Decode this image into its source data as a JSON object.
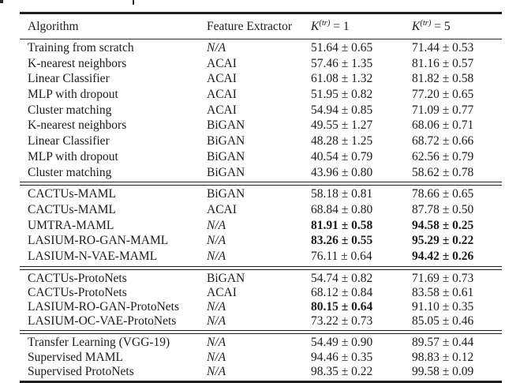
{
  "artifacts": {
    "note": "tiny cropped glyph fragments from caption line cut off at top edge"
  },
  "table": {
    "header": {
      "algorithm": "Algorithm",
      "feature_extractor": "Feature Extractor",
      "k1": {
        "base": "K",
        "sup": "(tr)",
        "rest": " = 1"
      },
      "k5": {
        "base": "K",
        "sup": "(tr)",
        "rest": " = 5"
      }
    },
    "rule_color": "#1e1e1e",
    "text_color": "#1b1b1b",
    "sections": [
      {
        "rows": [
          {
            "algorithm": "Training from scratch",
            "extractor": "N/A",
            "extractor_italic": true,
            "k1": "51.64 ± 0.65",
            "k5": "71.44 ± 0.53"
          },
          {
            "algorithm": "K-nearest neighbors",
            "extractor": "ACAI",
            "k1": "57.46 ± 1.35",
            "k5": "81.16 ± 0.57"
          },
          {
            "algorithm": "Linear Classifier",
            "extractor": "ACAI",
            "k1": "61.08 ± 1.32",
            "k5": "81.82 ± 0.58"
          },
          {
            "algorithm": "MLP with dropout",
            "extractor": "ACAI",
            "k1": "51.95 ± 0.82",
            "k5": "77.20 ± 0.65"
          },
          {
            "algorithm": "Cluster matching",
            "extractor": "ACAI",
            "k1": "54.94 ± 0.85",
            "k5": "71.09 ± 0.77"
          },
          {
            "algorithm": "K-nearest neighbors",
            "extractor": "BiGAN",
            "k1": "49.55 ± 1.27",
            "k5": "68.06 ± 0.71"
          },
          {
            "algorithm": "Linear Classifier",
            "extractor": "BiGAN",
            "k1": "48.28 ± 1.25",
            "k5": "68.72 ± 0.66"
          },
          {
            "algorithm": "MLP with dropout",
            "extractor": "BiGAN",
            "k1": "40.54 ± 0.79",
            "k5": "62.56 ± 0.79"
          },
          {
            "algorithm": "Cluster matching",
            "extractor": "BiGAN",
            "k1": "43.96 ± 0.80",
            "k5": "58.62 ± 0.78"
          }
        ]
      },
      {
        "rows": [
          {
            "algorithm": "CACTUs-MAML",
            "extractor": "BiGAN",
            "k1": "58.18 ± 0.81",
            "k5": "78.66 ± 0.65"
          },
          {
            "algorithm": "CACTUs-MAML",
            "extractor": "ACAI",
            "k1": "68.84 ± 0.80",
            "k5": "87.78 ± 0.50"
          },
          {
            "algorithm": "UMTRA-MAML",
            "extractor": "N/A",
            "extractor_italic": true,
            "k1": "81.91 ± 0.58",
            "k1_bold": true,
            "k5": "94.58 ± 0.25",
            "k5_bold": true
          },
          {
            "algorithm": "LASIUM-RO-GAN-MAML",
            "extractor": "N/A",
            "extractor_italic": true,
            "k1": "83.26 ± 0.55",
            "k1_bold": true,
            "k5": "95.29 ± 0.22",
            "k5_bold": true
          },
          {
            "algorithm": "LASIUM-N-VAE-MAML",
            "extractor": "N/A",
            "extractor_italic": true,
            "k1": "76.11 ± 0.64",
            "k5": "94.42 ± 0.26",
            "k5_bold": true
          }
        ]
      },
      {
        "rows": [
          {
            "algorithm": "CACTUs-ProtoNets",
            "extractor": "BiGAN",
            "k1": "54.74 ± 0.82",
            "k5": "71.69 ± 0.73"
          },
          {
            "algorithm": "CACTUs-ProtoNets",
            "extractor": "ACAI",
            "k1": "68.12 ± 0.84",
            "k5": "83.58 ± 0.61"
          },
          {
            "algorithm": "LASIUM-RO-GAN-ProtoNets",
            "extractor": "N/A",
            "extractor_italic": true,
            "k1": "80.15 ± 0.64",
            "k1_bold": true,
            "k5": "91.10 ± 0.35"
          },
          {
            "algorithm": "LASIUM-OC-VAE-ProtoNets",
            "extractor": "N/A",
            "extractor_italic": true,
            "k1": "73.22 ± 0.73",
            "k5": "85.05 ± 0.46"
          }
        ]
      },
      {
        "rows": [
          {
            "algorithm": "Transfer Learning (VGG-19)",
            "extractor": "N/A",
            "extractor_italic": true,
            "k1": "54.49 ± 0.90",
            "k5": "89.57 ± 0.44"
          },
          {
            "algorithm": "Supervised MAML",
            "extractor": "N/A",
            "extractor_italic": true,
            "k1": "94.46 ± 0.35",
            "k5": "98.83 ± 0.12"
          },
          {
            "algorithm": "Supervised ProtoNets",
            "extractor": "N/A",
            "extractor_italic": true,
            "k1": "98.35 ± 0.22",
            "k5": "99.58 ± 0.09"
          }
        ]
      }
    ]
  }
}
